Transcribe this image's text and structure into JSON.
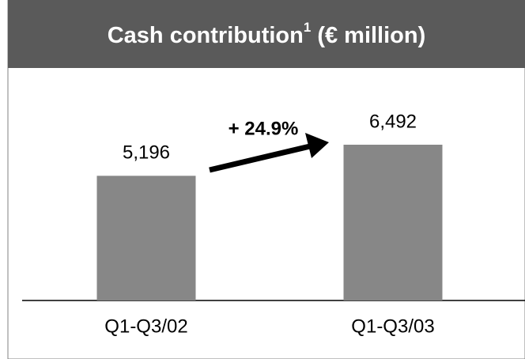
{
  "chart_data": {
    "type": "bar",
    "title": "Cash contribution",
    "title_note": "1",
    "title_unit": "(€ million)",
    "categories": [
      "Q1-Q3/02",
      "Q1-Q3/03"
    ],
    "values": [
      5196,
      6492
    ],
    "value_labels": [
      "5,196",
      "6,492"
    ],
    "color": "#878787",
    "annotation": "+ 24.9%"
  }
}
